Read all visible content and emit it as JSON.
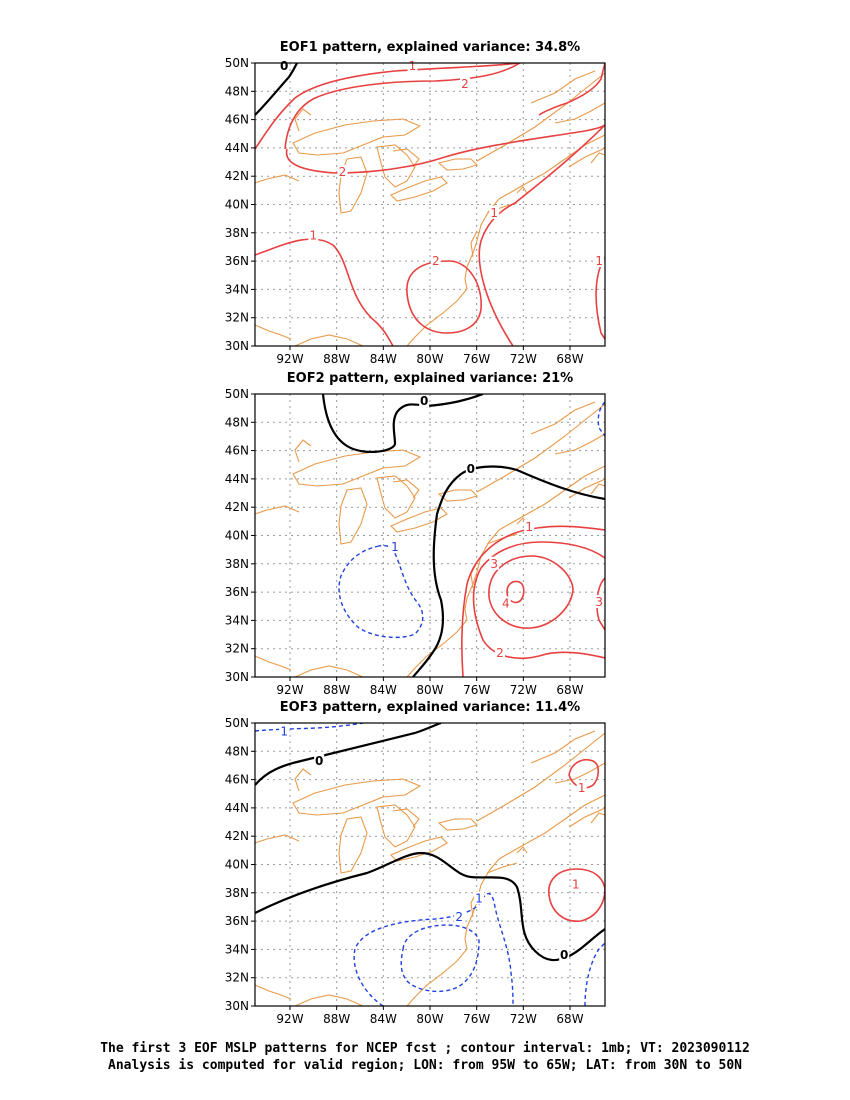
{
  "panels": [
    {
      "id": "eof1",
      "title": "EOF1 pattern, explained variance: 34.8%",
      "labels": [
        {
          "text": "0",
          "color": "black",
          "lon": -92.5,
          "lat": 49.8
        },
        {
          "text": "1",
          "color": "red",
          "lon": -81.5,
          "lat": 49.8
        },
        {
          "text": "2",
          "color": "red",
          "lon": -77.0,
          "lat": 48.5
        },
        {
          "text": "2",
          "color": "red",
          "lon": -87.5,
          "lat": 42.3
        },
        {
          "text": "1",
          "color": "red",
          "lon": -74.5,
          "lat": 39.4
        },
        {
          "text": "1",
          "color": "red",
          "lon": -90.0,
          "lat": 37.8
        },
        {
          "text": "2",
          "color": "red",
          "lon": -79.5,
          "lat": 36.0
        },
        {
          "text": "1",
          "color": "red",
          "lon": -65.5,
          "lat": 36.0
        }
      ]
    },
    {
      "id": "eof2",
      "title": "EOF2 pattern, explained variance: 21%",
      "labels": [
        {
          "text": "0",
          "color": "black",
          "lon": -80.5,
          "lat": 49.5
        },
        {
          "text": "0",
          "color": "black",
          "lon": -76.5,
          "lat": 44.7
        },
        {
          "text": "1",
          "color": "red",
          "lon": -71.5,
          "lat": 40.6
        },
        {
          "text": "3",
          "color": "red",
          "lon": -74.5,
          "lat": 38.0
        },
        {
          "text": "4",
          "color": "red",
          "lon": -73.5,
          "lat": 35.2
        },
        {
          "text": "3",
          "color": "red",
          "lon": -65.5,
          "lat": 35.3
        },
        {
          "text": "2",
          "color": "red",
          "lon": -74.0,
          "lat": 31.7
        },
        {
          "text": "1",
          "color": "blue",
          "lon": -83.0,
          "lat": 39.2
        }
      ]
    },
    {
      "id": "eof3",
      "title": "EOF3 pattern, explained variance: 11.4%",
      "labels": [
        {
          "text": "1",
          "color": "blue",
          "lon": -92.5,
          "lat": 49.4
        },
        {
          "text": "0",
          "color": "black",
          "lon": -89.5,
          "lat": 47.3
        },
        {
          "text": "1",
          "color": "red",
          "lon": -67.0,
          "lat": 45.4
        },
        {
          "text": "1",
          "color": "red",
          "lon": -67.5,
          "lat": 38.6
        },
        {
          "text": "1",
          "color": "blue",
          "lon": -75.8,
          "lat": 37.6
        },
        {
          "text": "2",
          "color": "blue",
          "lon": -77.5,
          "lat": 36.3
        },
        {
          "text": "0",
          "color": "black",
          "lon": -68.5,
          "lat": 33.6
        }
      ]
    }
  ],
  "axes": {
    "lon_ticks": [
      {
        "label": "92W",
        "lon": -92
      },
      {
        "label": "88W",
        "lon": -88
      },
      {
        "label": "84W",
        "lon": -84
      },
      {
        "label": "80W",
        "lon": -80
      },
      {
        "label": "76W",
        "lon": -76
      },
      {
        "label": "72W",
        "lon": -72
      },
      {
        "label": "68W",
        "lon": -68
      }
    ],
    "lat_ticks": [
      {
        "label": "30N",
        "lat": 30
      },
      {
        "label": "32N",
        "lat": 32
      },
      {
        "label": "34N",
        "lat": 34
      },
      {
        "label": "36N",
        "lat": 36
      },
      {
        "label": "38N",
        "lat": 38
      },
      {
        "label": "40N",
        "lat": 40
      },
      {
        "label": "42N",
        "lat": 42
      },
      {
        "label": "44N",
        "lat": 44
      },
      {
        "label": "46N",
        "lat": 46
      },
      {
        "label": "48N",
        "lat": 48
      },
      {
        "label": "50N",
        "lat": 50
      }
    ],
    "lon_range": [
      -95,
      -65
    ],
    "lat_range": [
      30,
      50
    ]
  },
  "colors": {
    "positive": "#e84040",
    "negative": "#2040e0",
    "zero": "#000000",
    "coastline": "#e89a4a",
    "grid": "#9a9a9a"
  },
  "caption": {
    "line1": "The first 3 EOF MSLP patterns for NCEP fcst ; contour interval: 1mb; VT: 2023090112",
    "line2": "Analysis is computed for valid region; LON: from 95W to 65W; LAT: from 30N to 50N"
  }
}
